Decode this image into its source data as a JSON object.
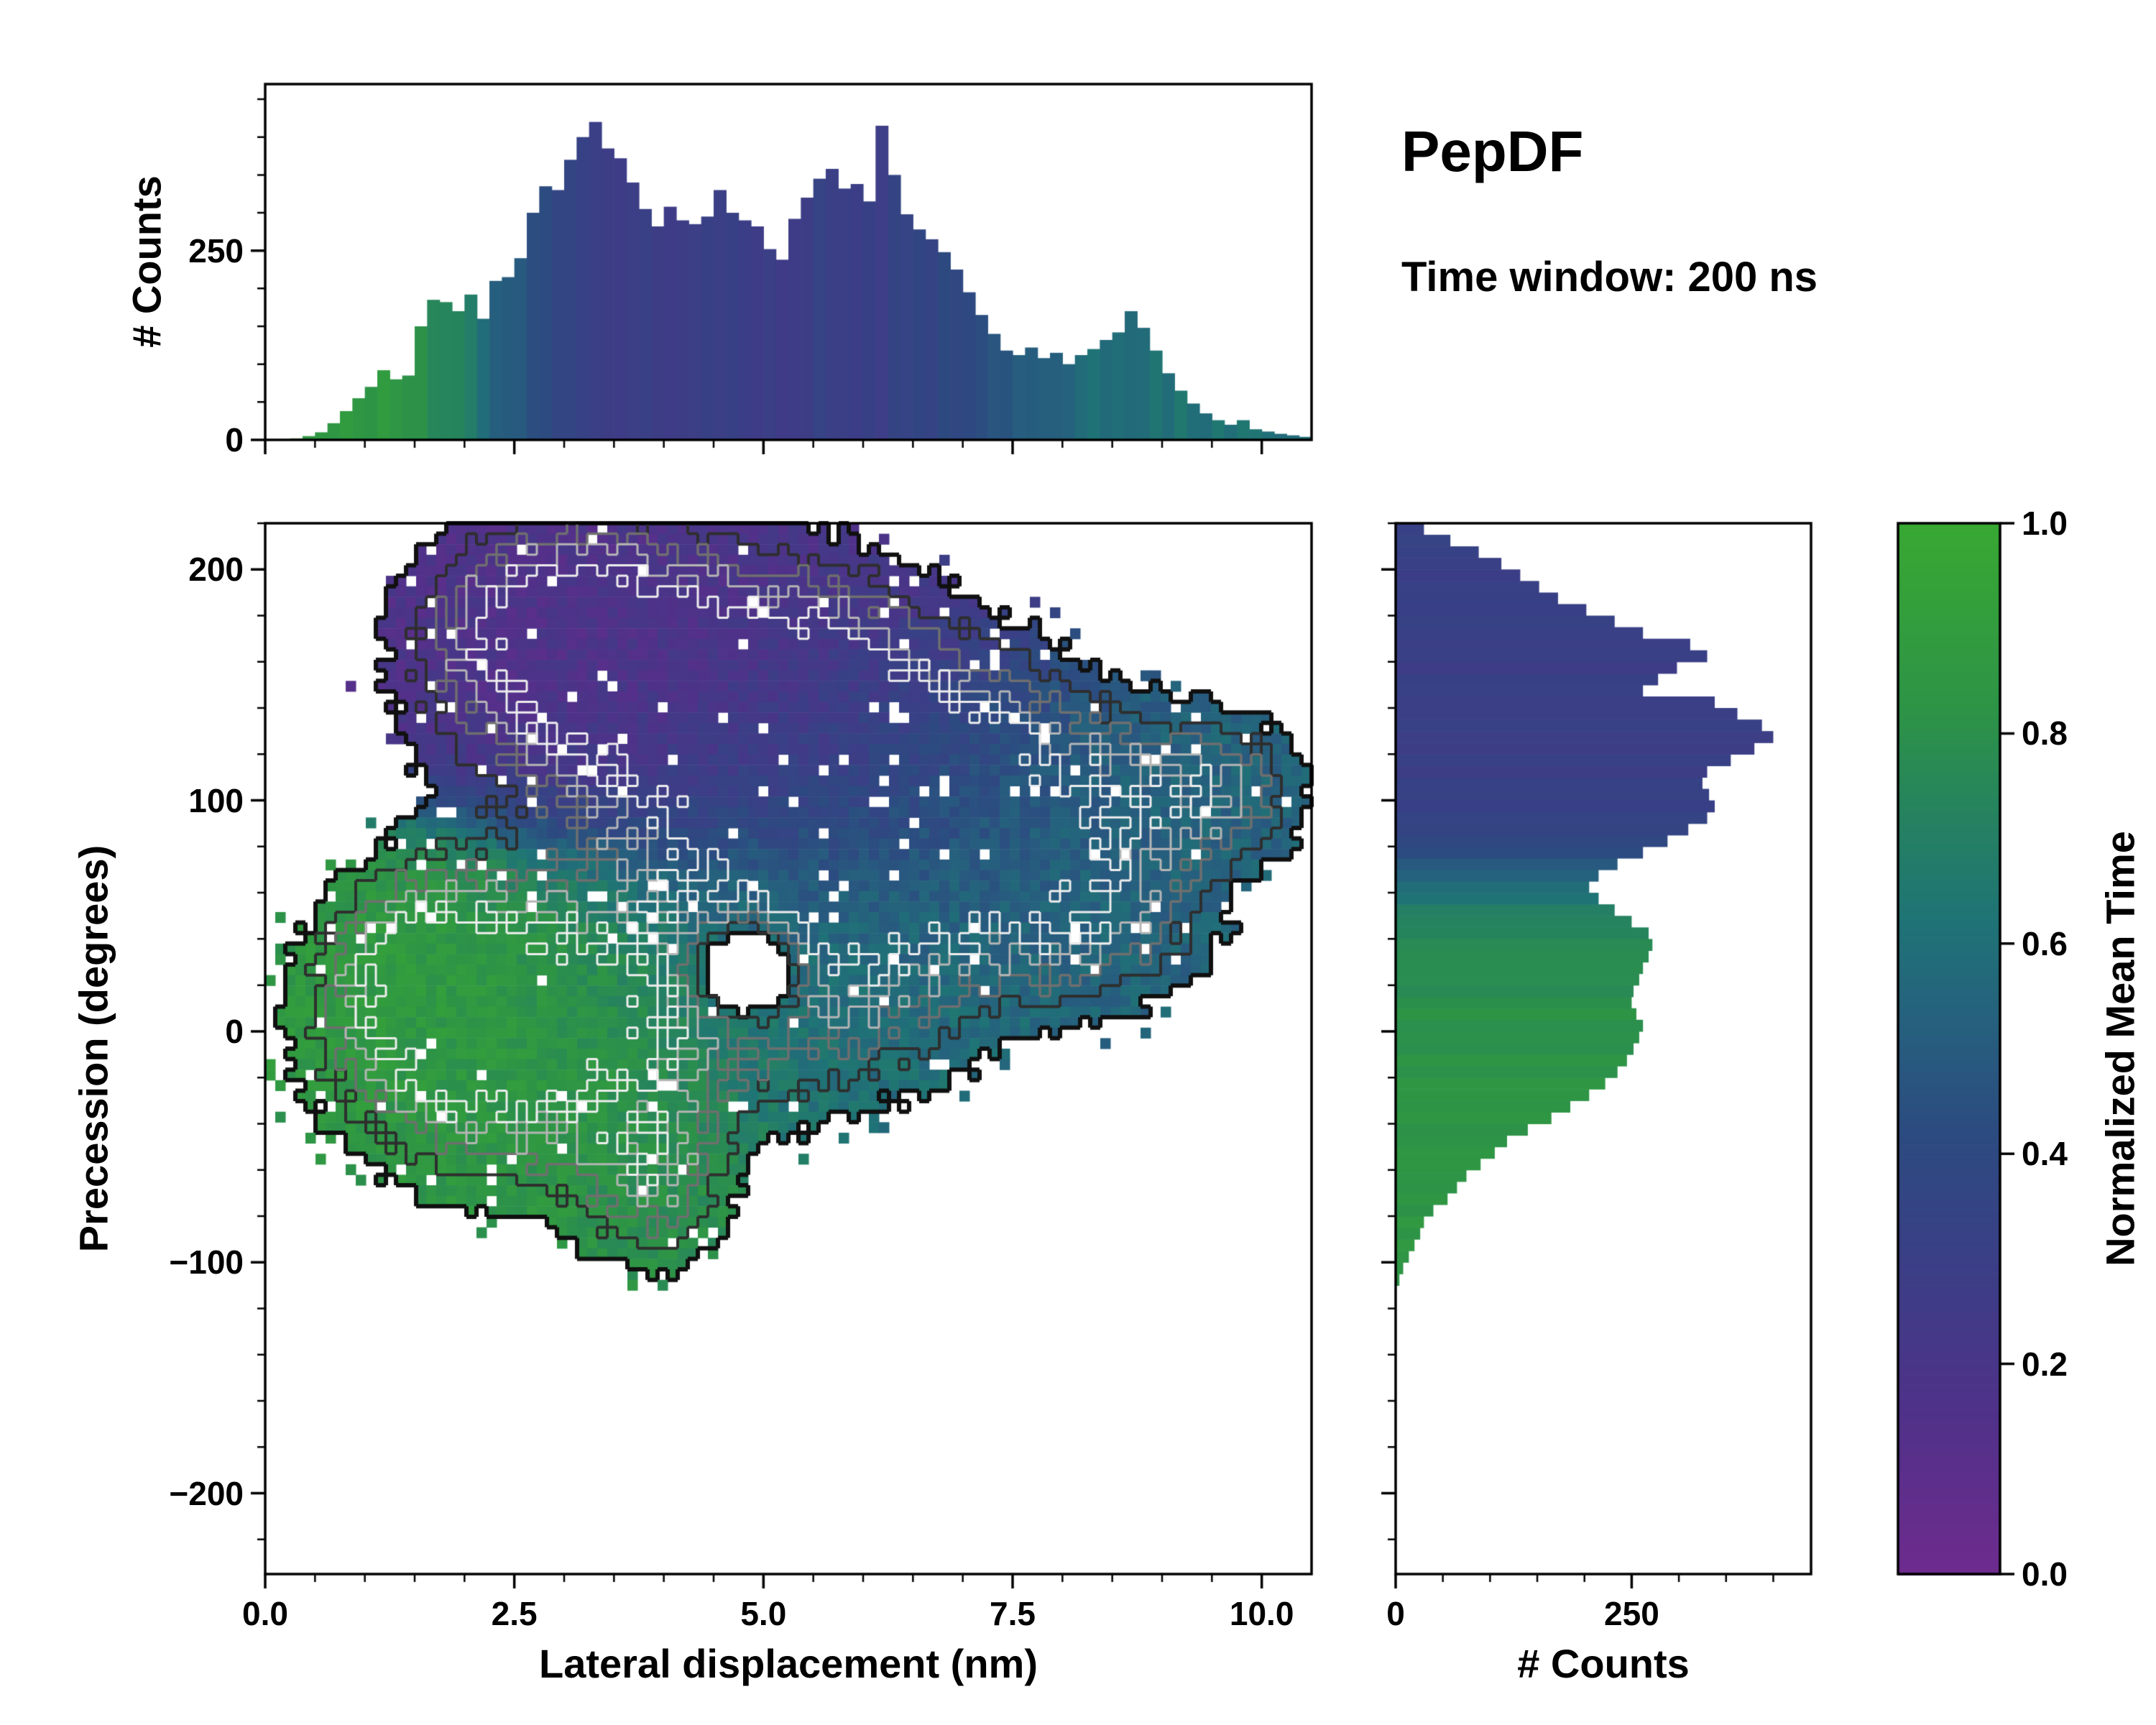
{
  "title": "PepDF",
  "subtitle": "Time window: 200 ns",
  "colors": {
    "background": "#ffffff",
    "axis": "#000000",
    "contour_outer": "#101010",
    "colormap_stops": [
      [
        0.0,
        "#6e2b8e"
      ],
      [
        0.15,
        "#503189"
      ],
      [
        0.3,
        "#3a3f86"
      ],
      [
        0.42,
        "#2c4b80"
      ],
      [
        0.52,
        "#265f7e"
      ],
      [
        0.62,
        "#1f7376"
      ],
      [
        0.72,
        "#258260"
      ],
      [
        0.82,
        "#2d9347"
      ],
      [
        1.0,
        "#38a832"
      ]
    ]
  },
  "axes": {
    "main": {
      "xlabel": "Lateral displacement (nm)",
      "ylabel": "Precession (degrees)",
      "xlim": [
        0,
        10.5
      ],
      "ylim": [
        -235,
        220
      ],
      "xticks": {
        "values": [
          0,
          2.5,
          5,
          7.5,
          10
        ],
        "labels": [
          "0.0",
          "2.5",
          "5.0",
          "7.5",
          "10.0"
        ]
      },
      "yticks": {
        "values": [
          -200,
          -100,
          0,
          100,
          200
        ],
        "labels": [
          "−200",
          "−100",
          "0",
          "100",
          "200"
        ]
      }
    },
    "top": {
      "ylabel": "# Counts",
      "ylim": [
        0,
        470
      ],
      "yticks": {
        "values": [
          0,
          250
        ],
        "labels": [
          "0",
          "250"
        ]
      }
    },
    "right": {
      "xlabel": "# Counts",
      "xlim": [
        0,
        440
      ],
      "xticks": {
        "values": [
          0,
          250
        ],
        "labels": [
          "0",
          "250"
        ]
      }
    }
  },
  "colorbar": {
    "label": "Normalized Mean Time",
    "values": [
      0,
      0.2,
      0.4,
      0.6,
      0.8,
      1.0
    ],
    "labels": [
      "0.0",
      "0.2",
      "0.4",
      "0.6",
      "0.8",
      "1.0"
    ]
  },
  "chart_data": [
    {
      "type": "bar",
      "id": "top-marginal-histogram",
      "orientation": "vertical",
      "xlabel": "Lateral displacement (nm)",
      "ylabel": "# Counts",
      "bin_start": 0,
      "bin_width": 0.125,
      "values": [
        0,
        0,
        2,
        5,
        10,
        22,
        38,
        55,
        70,
        92,
        80,
        85,
        150,
        185,
        182,
        170,
        192,
        160,
        210,
        215,
        240,
        300,
        335,
        330,
        370,
        400,
        420,
        385,
        372,
        340,
        305,
        282,
        308,
        290,
        285,
        295,
        330,
        300,
        290,
        282,
        252,
        238,
        292,
        320,
        345,
        358,
        332,
        338,
        315,
        415,
        350,
        298,
        278,
        265,
        248,
        225,
        195,
        165,
        140,
        118,
        112,
        122,
        108,
        115,
        100,
        112,
        120,
        132,
        142,
        170,
        148,
        118,
        88,
        65,
        48,
        35,
        26,
        20,
        26,
        14,
        11,
        8,
        6,
        4
      ],
      "t_curve": [
        [
          0,
          0.9
        ],
        [
          1.4,
          0.85
        ],
        [
          1.9,
          0.72
        ],
        [
          2.3,
          0.55
        ],
        [
          2.7,
          0.45
        ],
        [
          3.1,
          0.35
        ],
        [
          3.6,
          0.3
        ],
        [
          5.2,
          0.29
        ],
        [
          6.3,
          0.31
        ],
        [
          7.0,
          0.4
        ],
        [
          7.6,
          0.5
        ],
        [
          8.3,
          0.58
        ],
        [
          9.0,
          0.62
        ],
        [
          10.5,
          0.6
        ]
      ],
      "note": "bars colored by Normalized Mean Time"
    },
    {
      "type": "heatmap",
      "id": "joint-density-2d-histogram",
      "xlabel": "Lateral displacement (nm)",
      "ylabel": "Precession (degrees)",
      "grid": [
        104,
        100
      ],
      "threshold": 0.18,
      "contour_levels": [
        [
          0.18,
          "#101010",
          6
        ],
        [
          0.33,
          "#2e2e2e",
          4
        ],
        [
          0.47,
          "#6f6f6f",
          3.5
        ],
        [
          0.62,
          "#b5b5b5",
          3
        ],
        [
          0.78,
          "#eeeeee",
          3
        ]
      ],
      "blobs": [
        {
          "cx": 4.2,
          "cy": 150,
          "sx": 1.5,
          "sy": 40,
          "amp": 1.0,
          "t": 0.17
        },
        {
          "cx": 2.9,
          "cy": 178,
          "sx": 0.8,
          "sy": 28,
          "amp": 0.7,
          "t": 0.15
        },
        {
          "cx": 5.8,
          "cy": 115,
          "sx": 1.1,
          "sy": 38,
          "amp": 0.8,
          "t": 0.3
        },
        {
          "cx": 7.6,
          "cy": 95,
          "sx": 1.2,
          "sy": 36,
          "amp": 0.72,
          "t": 0.52
        },
        {
          "cx": 9.5,
          "cy": 105,
          "sx": 0.65,
          "sy": 20,
          "amp": 0.5,
          "t": 0.55
        },
        {
          "cx": 2.5,
          "cy": 0,
          "sx": 1.15,
          "sy": 42,
          "amp": 1.05,
          "t": 0.85
        },
        {
          "cx": 1.5,
          "cy": 25,
          "sx": 0.6,
          "sy": 30,
          "amp": 0.55,
          "t": 0.88
        },
        {
          "cx": 5.4,
          "cy": 40,
          "sx": 1.3,
          "sy": 45,
          "amp": 0.8,
          "t": 0.6
        },
        {
          "cx": 3.9,
          "cy": -65,
          "sx": 0.5,
          "sy": 27,
          "amp": 0.5,
          "t": 0.8
        },
        {
          "cx": 8.3,
          "cy": 45,
          "sx": 0.8,
          "sy": 25,
          "amp": 0.45,
          "t": 0.55
        },
        {
          "cx": 4.85,
          "cy": 28,
          "sx": 0.38,
          "sy": 15,
          "amp": -1.25,
          "t": 0.6
        }
      ],
      "color_meaning": "cell color = Normalized Mean Time (colorbar 0.0 purple to 1.0 green)"
    },
    {
      "type": "bar",
      "id": "right-marginal-histogram",
      "orientation": "horizontal",
      "xlabel": "# Counts",
      "ylabel": "Precession (degrees)",
      "bin_start": -235,
      "bin_width": 5,
      "values": [
        0,
        0,
        0,
        0,
        0,
        0,
        0,
        0,
        0,
        0,
        0,
        0,
        0,
        0,
        0,
        0,
        0,
        0,
        0,
        0,
        0,
        0,
        0,
        0,
        0,
        4,
        8,
        14,
        20,
        26,
        30,
        40,
        55,
        65,
        75,
        90,
        105,
        118,
        140,
        165,
        185,
        205,
        222,
        235,
        245,
        252,
        258,
        262,
        255,
        250,
        252,
        258,
        262,
        268,
        272,
        268,
        250,
        232,
        215,
        205,
        215,
        235,
        262,
        288,
        310,
        330,
        338,
        332,
        325,
        330,
        355,
        380,
        400,
        388,
        362,
        338,
        262,
        278,
        298,
        330,
        312,
        262,
        232,
        202,
        172,
        152,
        132,
        112,
        88,
        58,
        30
      ],
      "t_curve": [
        [
          -235,
          0.85
        ],
        [
          -40,
          0.84
        ],
        [
          10,
          0.8
        ],
        [
          45,
          0.74
        ],
        [
          58,
          0.62
        ],
        [
          70,
          0.5
        ],
        [
          85,
          0.38
        ],
        [
          105,
          0.3
        ],
        [
          150,
          0.29
        ],
        [
          180,
          0.3
        ],
        [
          220,
          0.33
        ]
      ],
      "note": "bars colored by Normalized Mean Time"
    }
  ]
}
